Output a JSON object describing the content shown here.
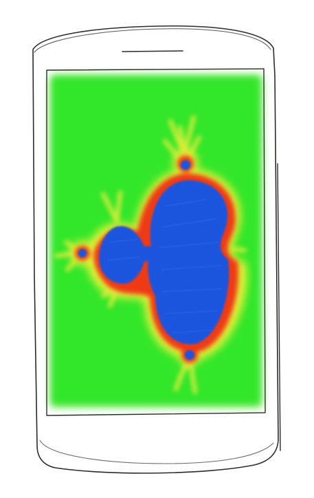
{
  "colors": {
    "background": "#ffffff",
    "outline": "#2a2a2a",
    "screen_fill": "#33e62b",
    "screen_glow": "#c8f5b4",
    "fractal_interior": "#1f55dd",
    "fractal_edge_red": "#ee3a14",
    "fractal_halo_yellow": "#f0f23a"
  },
  "icons": {
    "device": "phone-icon",
    "speaker": "speaker-slot-icon",
    "side_button": "side-button-icon",
    "artwork": "mandelbrot-fractal-icon"
  }
}
